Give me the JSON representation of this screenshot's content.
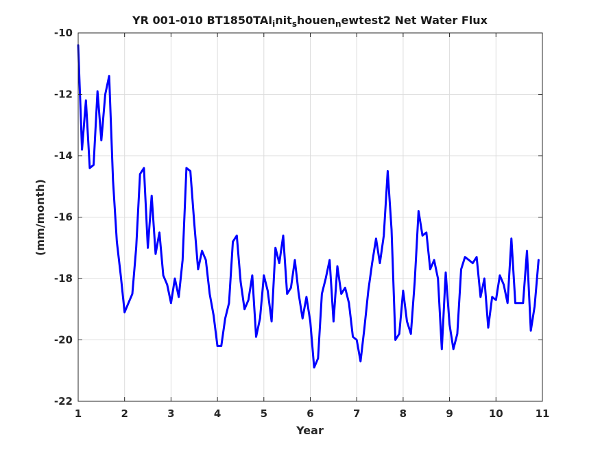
{
  "chart_data": {
    "type": "line",
    "title_parts": [
      {
        "text": "YR 001-010 BT1850TAI",
        "sub": false
      },
      {
        "text": "i",
        "sub": true
      },
      {
        "text": "nit",
        "sub": false
      },
      {
        "text": "s",
        "sub": true
      },
      {
        "text": "houen",
        "sub": false
      },
      {
        "text": "n",
        "sub": true
      },
      {
        "text": "ewtest2 Net Water Flux",
        "sub": false
      }
    ],
    "xlabel": "Year",
    "ylabel": "(mm/month)",
    "xlim": [
      1,
      11
    ],
    "ylim": [
      -22,
      -10
    ],
    "xticks": [
      1,
      2,
      3,
      4,
      5,
      6,
      7,
      8,
      9,
      10,
      11
    ],
    "yticks": [
      -22,
      -20,
      -18,
      -16,
      -14,
      -12,
      -10
    ],
    "grid": true,
    "line_color": "#0000ff",
    "series": [
      {
        "x": [
          1.0,
          1.083,
          1.167,
          1.25,
          1.333,
          1.417,
          1.5,
          1.583,
          1.667,
          1.75,
          1.833,
          1.917,
          2.0,
          2.083,
          2.167,
          2.25,
          2.333,
          2.417,
          2.5,
          2.583,
          2.667,
          2.75,
          2.833,
          2.917,
          3.0,
          3.083,
          3.167,
          3.25,
          3.333,
          3.417,
          3.5,
          3.583,
          3.667,
          3.75,
          3.833,
          3.917,
          4.0,
          4.083,
          4.167,
          4.25,
          4.333,
          4.417,
          4.5,
          4.583,
          4.667,
          4.75,
          4.833,
          4.917,
          5.0,
          5.083,
          5.167,
          5.25,
          5.333,
          5.417,
          5.5,
          5.583,
          5.667,
          5.75,
          5.833,
          5.917,
          6.0,
          6.083,
          6.167,
          6.25,
          6.333,
          6.417,
          6.5,
          6.583,
          6.667,
          6.75,
          6.833,
          6.917,
          7.0,
          7.083,
          7.167,
          7.25,
          7.333,
          7.417,
          7.5,
          7.583,
          7.667,
          7.75,
          7.833,
          7.917,
          8.0,
          8.083,
          8.167,
          8.25,
          8.333,
          8.417,
          8.5,
          8.583,
          8.667,
          8.75,
          8.833,
          8.917,
          9.0,
          9.083,
          9.167,
          9.25,
          9.333,
          9.417,
          9.5,
          9.583,
          9.667,
          9.75,
          9.833,
          9.917,
          10.0,
          10.083,
          10.167,
          10.25,
          10.333,
          10.417,
          10.5,
          10.583,
          10.667,
          10.75,
          10.833,
          10.917
        ],
        "y": [
          -10.4,
          -13.8,
          -12.2,
          -14.4,
          -14.3,
          -11.9,
          -13.5,
          -12.0,
          -11.4,
          -14.8,
          -16.8,
          -17.9,
          -19.1,
          -18.8,
          -18.5,
          -17.0,
          -14.6,
          -14.4,
          -17.0,
          -15.3,
          -17.2,
          -16.5,
          -17.9,
          -18.2,
          -18.8,
          -18.0,
          -18.6,
          -17.4,
          -14.4,
          -14.5,
          -16.2,
          -17.7,
          -17.1,
          -17.4,
          -18.5,
          -19.2,
          -20.2,
          -20.2,
          -19.3,
          -18.8,
          -16.8,
          -16.6,
          -18.1,
          -19.0,
          -18.7,
          -17.9,
          -19.9,
          -19.3,
          -17.9,
          -18.4,
          -19.4,
          -17.0,
          -17.5,
          -16.6,
          -18.5,
          -18.3,
          -17.4,
          -18.5,
          -19.3,
          -18.6,
          -19.4,
          -20.9,
          -20.6,
          -18.5,
          -18.0,
          -17.4,
          -19.4,
          -17.6,
          -18.5,
          -18.3,
          -18.8,
          -19.9,
          -20.0,
          -20.7,
          -19.6,
          -18.4,
          -17.5,
          -16.7,
          -17.5,
          -16.6,
          -14.5,
          -16.4,
          -20.0,
          -19.8,
          -18.4,
          -19.4,
          -19.8,
          -18.1,
          -15.8,
          -16.6,
          -16.5,
          -17.7,
          -17.4,
          -18.0,
          -20.3,
          -17.8,
          -19.5,
          -20.3,
          -19.8,
          -17.7,
          -17.3,
          -17.4,
          -17.5,
          -17.3,
          -18.6,
          -18.0,
          -19.6,
          -18.6,
          -18.7,
          -17.9,
          -18.2,
          -18.8,
          -16.7,
          -18.8,
          -18.8,
          -18.8,
          -17.1,
          -19.7,
          -18.9,
          -17.4
        ]
      }
    ]
  }
}
